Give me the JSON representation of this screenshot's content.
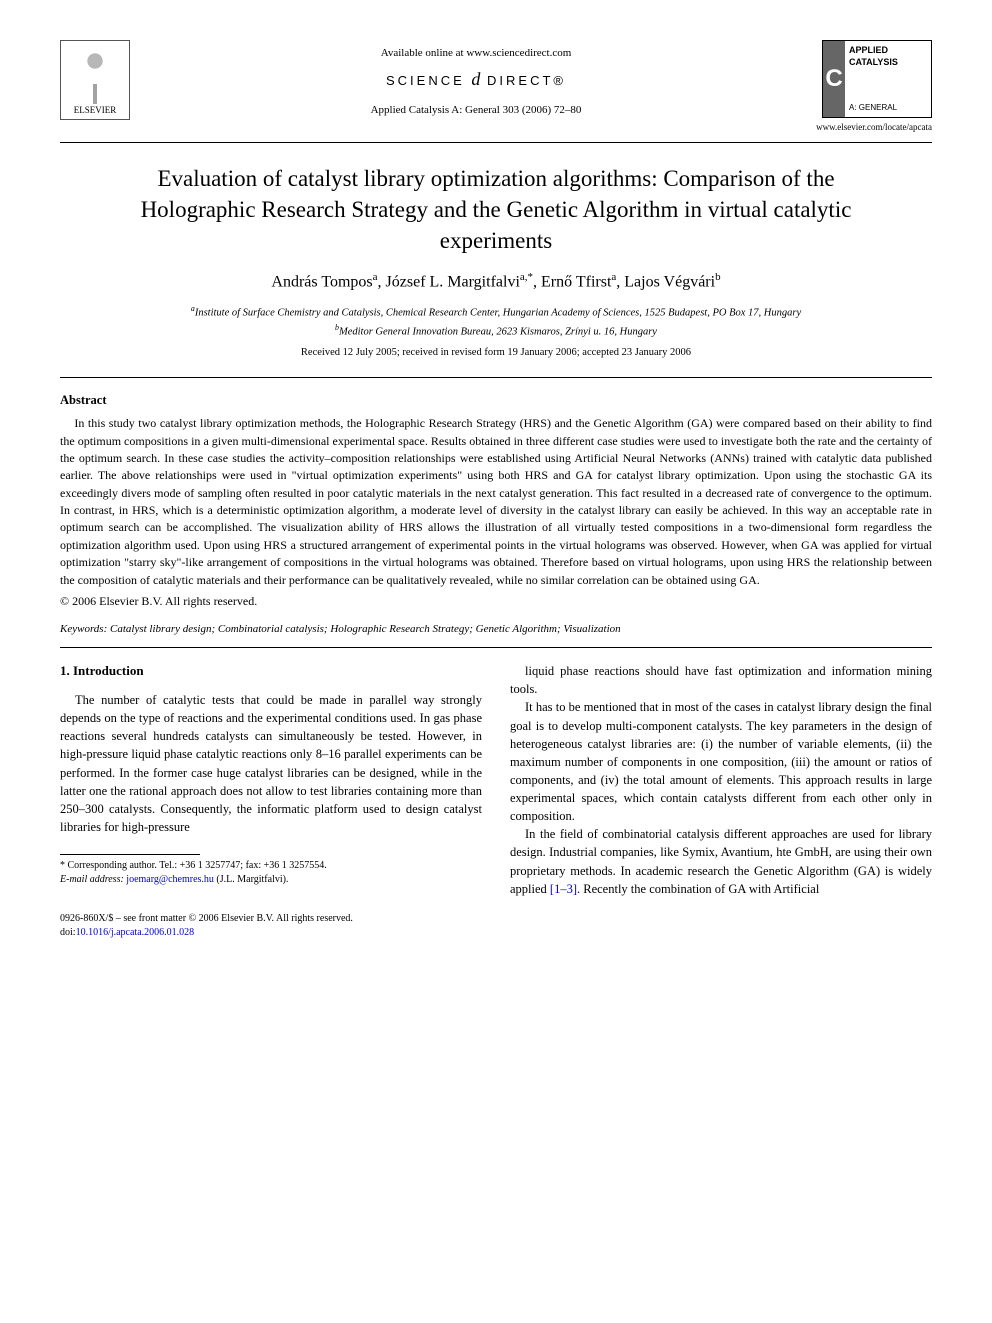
{
  "header": {
    "available_text": "Available online at www.sciencedirect.com",
    "sd_brand_left": "SCIENCE",
    "sd_brand_right": "DIRECT®",
    "journal_ref": "Applied Catalysis A: General 303 (2006) 72–80",
    "elsevier_label": "ELSEVIER",
    "journal_logo": {
      "letter": "C",
      "line1": "APPLIED",
      "line2": "CATALYSIS",
      "line3": "A: GENERAL"
    },
    "journal_url": "www.elsevier.com/locate/apcata"
  },
  "title": "Evaluation of catalyst library optimization algorithms: Comparison of the Holographic Research Strategy and the Genetic Algorithm in virtual catalytic experiments",
  "authors_html": "András Tompos ",
  "authors": [
    {
      "name": "András Tompos",
      "aff": "a"
    },
    {
      "name": "József L. Margitfalvi",
      "aff": "a,*"
    },
    {
      "name": "Ernő Tfirst",
      "aff": "a"
    },
    {
      "name": "Lajos Végvári",
      "aff": "b"
    }
  ],
  "affiliations": {
    "a": "Institute of Surface Chemistry and Catalysis, Chemical Research Center, Hungarian Academy of Sciences, 1525 Budapest, PO Box 17, Hungary",
    "b": "Meditor General Innovation Bureau, 2623 Kismaros, Zrínyi u. 16, Hungary"
  },
  "dates": "Received 12 July 2005; received in revised form 19 January 2006; accepted 23 January 2006",
  "abstract": {
    "heading": "Abstract",
    "body": "In this study two catalyst library optimization methods, the Holographic Research Strategy (HRS) and the Genetic Algorithm (GA) were compared based on their ability to find the optimum compositions in a given multi-dimensional experimental space. Results obtained in three different case studies were used to investigate both the rate and the certainty of the optimum search. In these case studies the activity–composition relationships were established using Artificial Neural Networks (ANNs) trained with catalytic data published earlier. The above relationships were used in \"virtual optimization experiments\" using both HRS and GA for catalyst library optimization. Upon using the stochastic GA its exceedingly divers mode of sampling often resulted in poor catalytic materials in the next catalyst generation. This fact resulted in a decreased rate of convergence to the optimum. In contrast, in HRS, which is a deterministic optimization algorithm, a moderate level of diversity in the catalyst library can easily be achieved. In this way an acceptable rate in optimum search can be accomplished. The visualization ability of HRS allows the illustration of all virtually tested compositions in a two-dimensional form regardless the optimization algorithm used. Upon using HRS a structured arrangement of experimental points in the virtual holograms was observed. However, when GA was applied for virtual optimization \"starry sky\"-like arrangement of compositions in the virtual holograms was obtained. Therefore based on virtual holograms, upon using HRS the relationship between the composition of catalytic materials and their performance can be qualitatively revealed, while no similar correlation can be obtained using GA.",
    "copyright": "© 2006 Elsevier B.V. All rights reserved."
  },
  "keywords": {
    "label": "Keywords:",
    "text": "Catalyst library design; Combinatorial catalysis; Holographic Research Strategy; Genetic Algorithm; Visualization"
  },
  "intro": {
    "heading": "1.  Introduction",
    "p1": "The number of catalytic tests that could be made in parallel way strongly depends on the type of reactions and the experimental conditions used. In gas phase reactions several hundreds catalysts can simultaneously be tested. However, in high-pressure liquid phase catalytic reactions only 8–16 parallel experiments can be performed. In the former case huge catalyst libraries can be designed, while in the latter one the rational approach does not allow to test libraries containing more than 250–300 catalysts. Consequently, the informatic platform used to design catalyst libraries for high-pressure",
    "p2": "liquid phase reactions should have fast optimization and information mining tools.",
    "p3": "It has to be mentioned that in most of the cases in catalyst library design the final goal is to develop multi-component catalysts. The key parameters in the design of heterogeneous catalyst libraries are: (i) the number of variable elements, (ii) the maximum number of components in one composition, (iii) the amount or ratios of components, and (iv) the total amount of elements. This approach results in large experimental spaces, which contain catalysts different from each other only in composition.",
    "p4_pre": "In the field of combinatorial catalysis different approaches are used for library design. Industrial companies, like Symix, Avantium, hte GmbH, are using their own proprietary methods. In academic research the Genetic Algorithm (GA) is widely applied ",
    "p4_ref": "[1–3]",
    "p4_post": ". Recently the combination of GA with Artificial"
  },
  "footnote": {
    "corr": "* Corresponding author. Tel.: +36 1 3257747; fax: +36 1 3257554.",
    "email_label": "E-mail address:",
    "email": "joemarg@chemres.hu",
    "email_who": "(J.L. Margitfalvi)."
  },
  "footer": {
    "line1": "0926-860X/$ – see front matter © 2006 Elsevier B.V. All rights reserved.",
    "doi_label": "doi:",
    "doi": "10.1016/j.apcata.2006.01.028"
  }
}
